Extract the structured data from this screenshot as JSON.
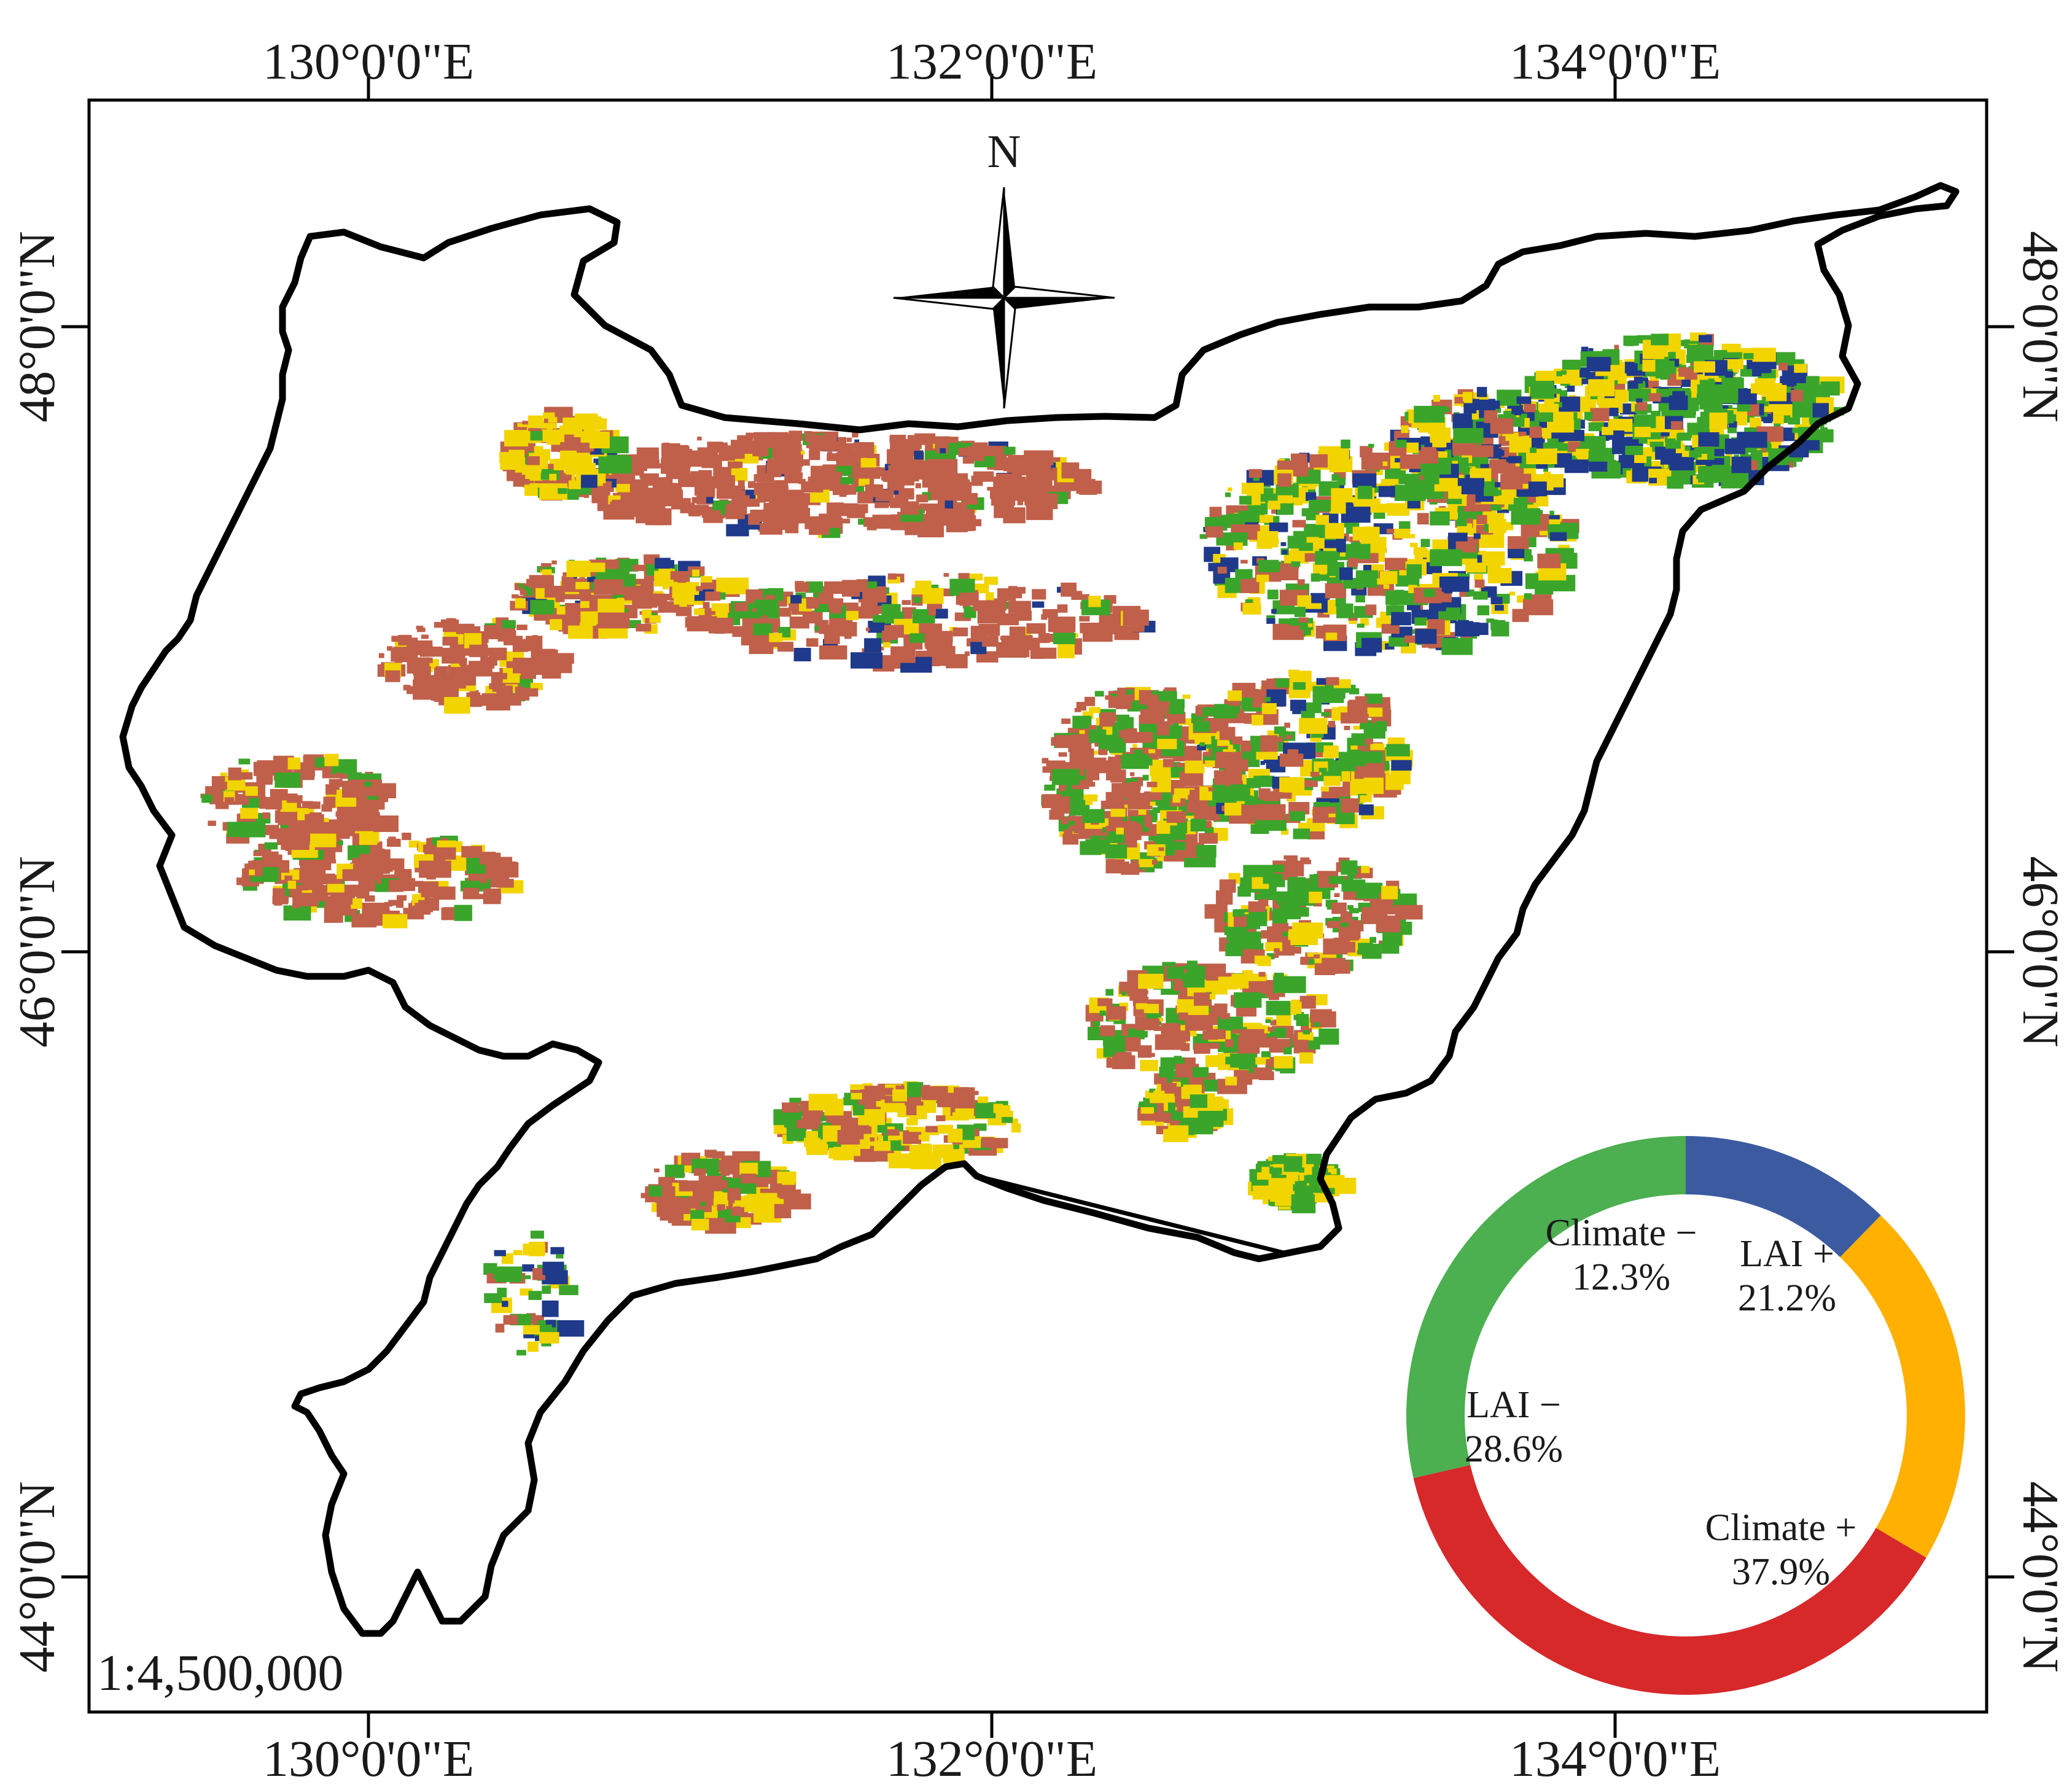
{
  "map": {
    "lon_labels": [
      "130°0'0\"E",
      "132°0'0\"E",
      "134°0'0\"E"
    ],
    "lat_labels": [
      "48°0'0\"N",
      "46°0'0\"N",
      "44°0'0\"N"
    ],
    "north_label": "N",
    "scale": "1:4,500,000",
    "colors": {
      "climate_minus": "#1f3a8a",
      "lai_plus": "#f2d400",
      "lai_minus": "#3aa52a",
      "climate_plus": "#c0604a",
      "boundary": "#000000"
    }
  },
  "donut": {
    "segments": [
      {
        "name": "Climate −",
        "value": "12.3%",
        "pct": 12.3,
        "color": "#3b5aa0"
      },
      {
        "name": "LAI +",
        "value": "21.2%",
        "pct": 21.2,
        "color": "#ffb000"
      },
      {
        "name": "Climate +",
        "value": "37.9%",
        "pct": 37.9,
        "color": "#d7282a"
      },
      {
        "name": "LAI −",
        "value": "28.6%",
        "pct": 28.6,
        "color": "#4caf50"
      }
    ]
  }
}
